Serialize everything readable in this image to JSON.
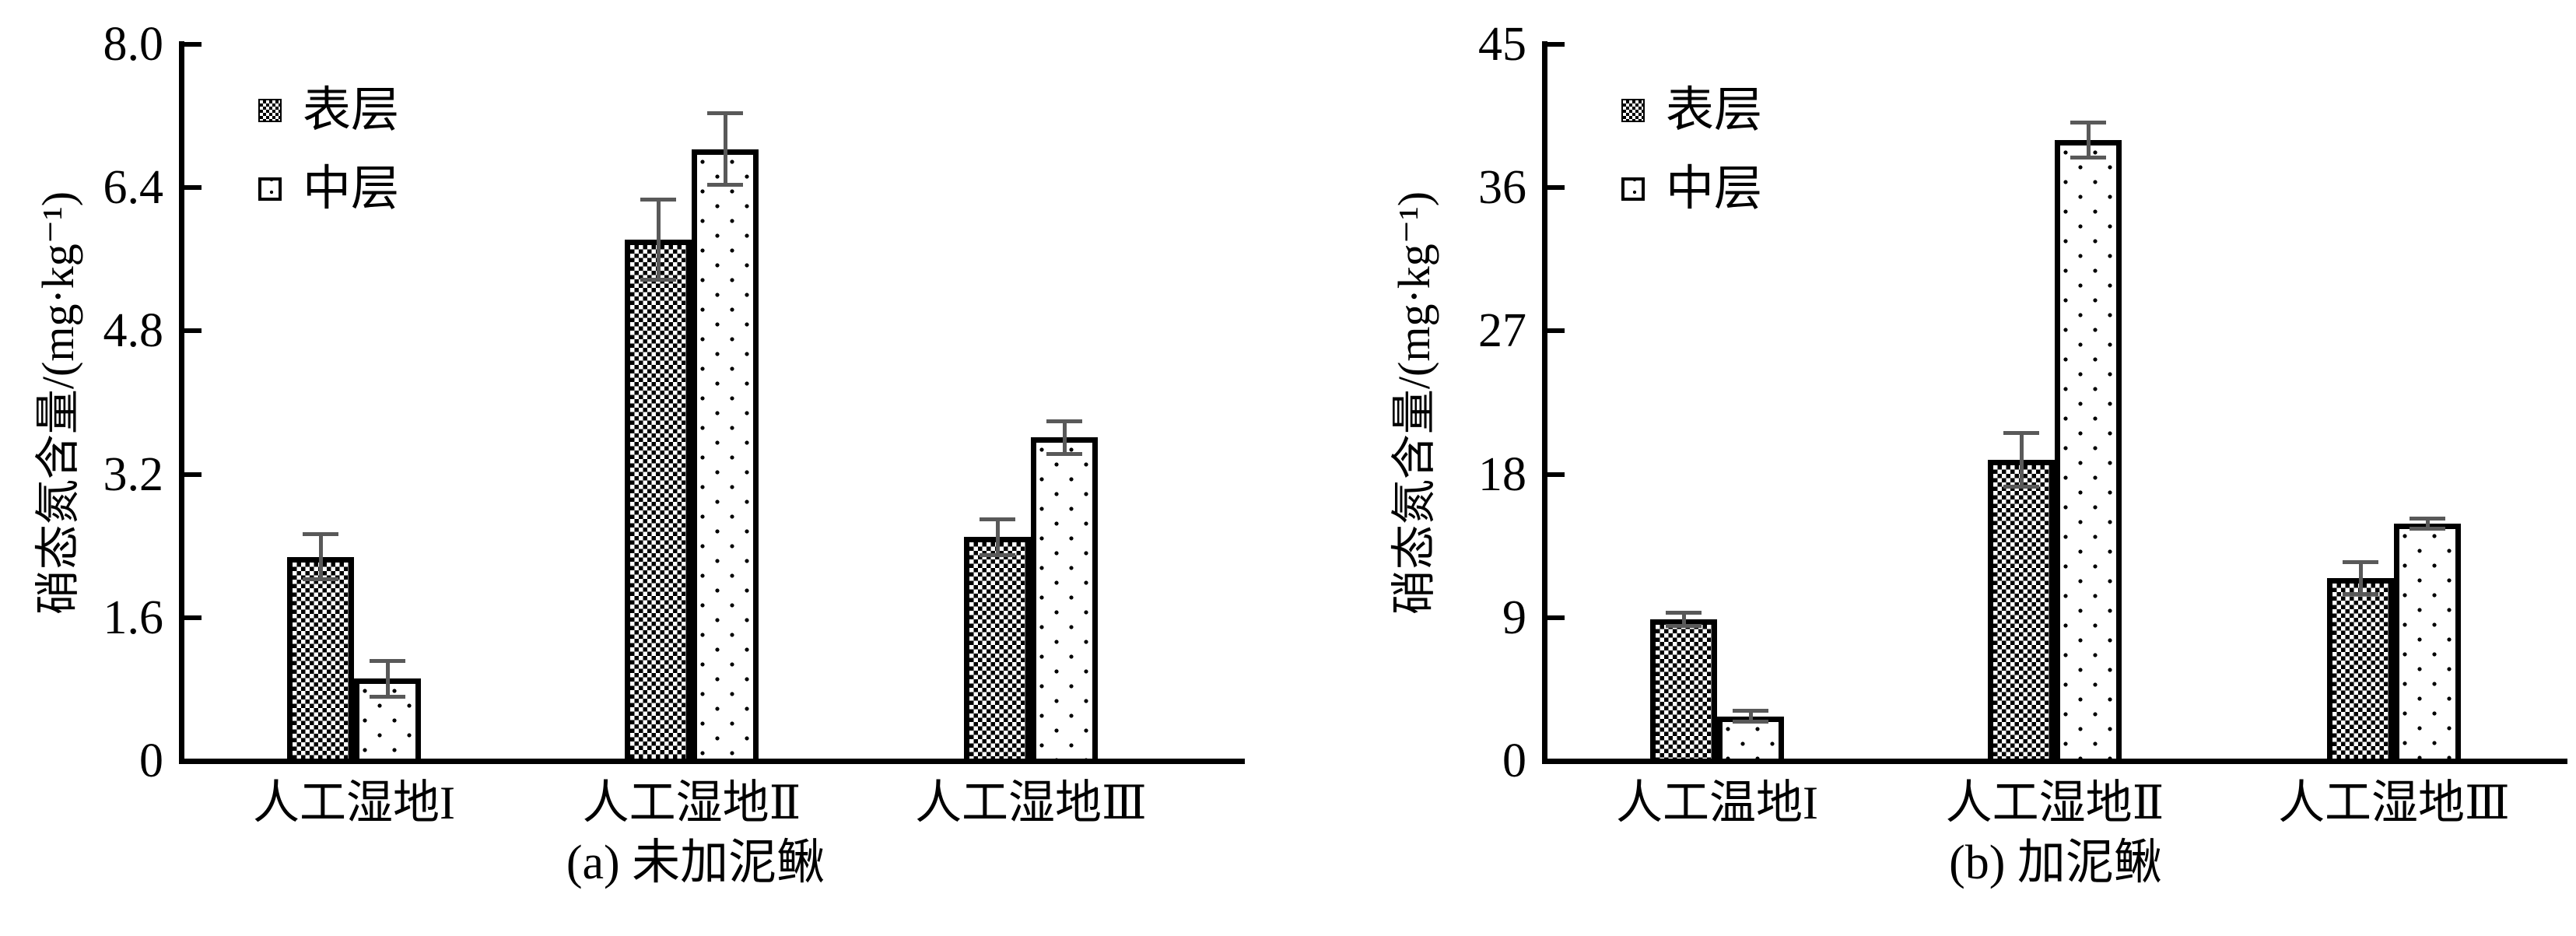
{
  "figure": {
    "background": "#ffffff",
    "colors": {
      "axis": "#000000",
      "bar_outline": "#000000",
      "error_bar": "#595959"
    },
    "legend": {
      "items": [
        {
          "label": "表层",
          "pattern": "checker"
        },
        {
          "label": "中层",
          "pattern": "dots"
        }
      ]
    }
  },
  "chart_data": [
    {
      "type": "bar",
      "panel": "a",
      "title": "(a) 未加泥鳅",
      "ylabel": "硝态氮含量/(mg·kg⁻¹)",
      "categories": [
        "人工湿地I",
        "人工湿地Ⅱ",
        "人工湿地Ⅲ"
      ],
      "series": [
        {
          "name": "表层",
          "pattern": "checker",
          "values": [
            2.28,
            5.82,
            2.5
          ],
          "errors": [
            0.25,
            0.45,
            0.2
          ]
        },
        {
          "name": "中层",
          "pattern": "dots",
          "values": [
            0.92,
            6.83,
            3.61
          ],
          "errors": [
            0.2,
            0.4,
            0.18
          ]
        }
      ],
      "ylim": [
        0,
        8.0
      ],
      "yticks": [
        0,
        1.6,
        3.2,
        4.8,
        6.4,
        8.0
      ],
      "ytick_labels": [
        "0",
        "1.6",
        "3.2",
        "4.8",
        "6.4",
        "8.0"
      ],
      "grid": false,
      "legend_position": "upper-left-inside"
    },
    {
      "type": "bar",
      "panel": "b",
      "title": "(b) 加泥鳅",
      "ylabel": "硝态氮含量/(mg·kg⁻¹)",
      "categories": [
        "人工温地I",
        "人工湿地Ⅱ",
        "人工湿地Ⅲ"
      ],
      "series": [
        {
          "name": "表层",
          "pattern": "checker",
          "values": [
            8.9,
            18.9,
            11.5
          ],
          "errors": [
            0.4,
            1.7,
            1.0
          ]
        },
        {
          "name": "中层",
          "pattern": "dots",
          "values": [
            2.8,
            39.0,
            14.9
          ],
          "errors": [
            0.35,
            1.1,
            0.3
          ]
        }
      ],
      "ylim": [
        0,
        45
      ],
      "yticks": [
        0,
        9,
        18,
        27,
        36,
        45
      ],
      "ytick_labels": [
        "0",
        "9",
        "18",
        "27",
        "36",
        "45"
      ],
      "grid": false,
      "legend_position": "upper-left-inside"
    }
  ]
}
